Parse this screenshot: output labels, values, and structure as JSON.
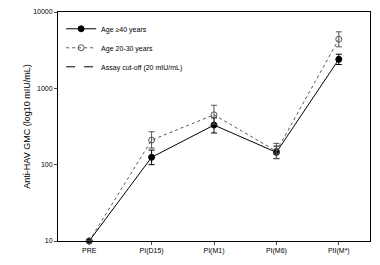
{
  "chart_data": {
    "type": "line",
    "y_label": "Anti-HAV GMC (log10 mIU/mL)",
    "categories": [
      "PRE",
      "PI(D15)",
      "PI(M1)",
      "PI(M6)",
      "PII(M*)"
    ],
    "log": "y",
    "ylim": [
      10,
      10000
    ],
    "yticks": [
      10,
      100,
      1000,
      10000
    ],
    "grid": false,
    "legend": "top-left",
    "series": [
      {
        "name": "Age ≥40 years",
        "color": "#000000",
        "marker": "circle",
        "line_style": "solid",
        "values": [
          10,
          125,
          330,
          145,
          2400
        ],
        "error": {
          "plus": [
            0,
            30,
            80,
            30,
            400
          ],
          "minus": [
            0,
            25,
            70,
            25,
            350
          ]
        }
      },
      {
        "name": "Age 20-30 years",
        "color": "#555555",
        "marker": "circle-open",
        "line_style": "dot",
        "values": [
          10,
          210,
          450,
          150,
          4400
        ],
        "error": {
          "plus": [
            0,
            60,
            150,
            40,
            1100
          ],
          "minus": [
            0,
            45,
            110,
            30,
            900
          ]
        }
      },
      {
        "name": "Assay cut-off (20 mIU/mL)",
        "color": "#000000",
        "line_style": "dash",
        "values": [
          null,
          null,
          null,
          null,
          null
        ]
      }
    ]
  }
}
